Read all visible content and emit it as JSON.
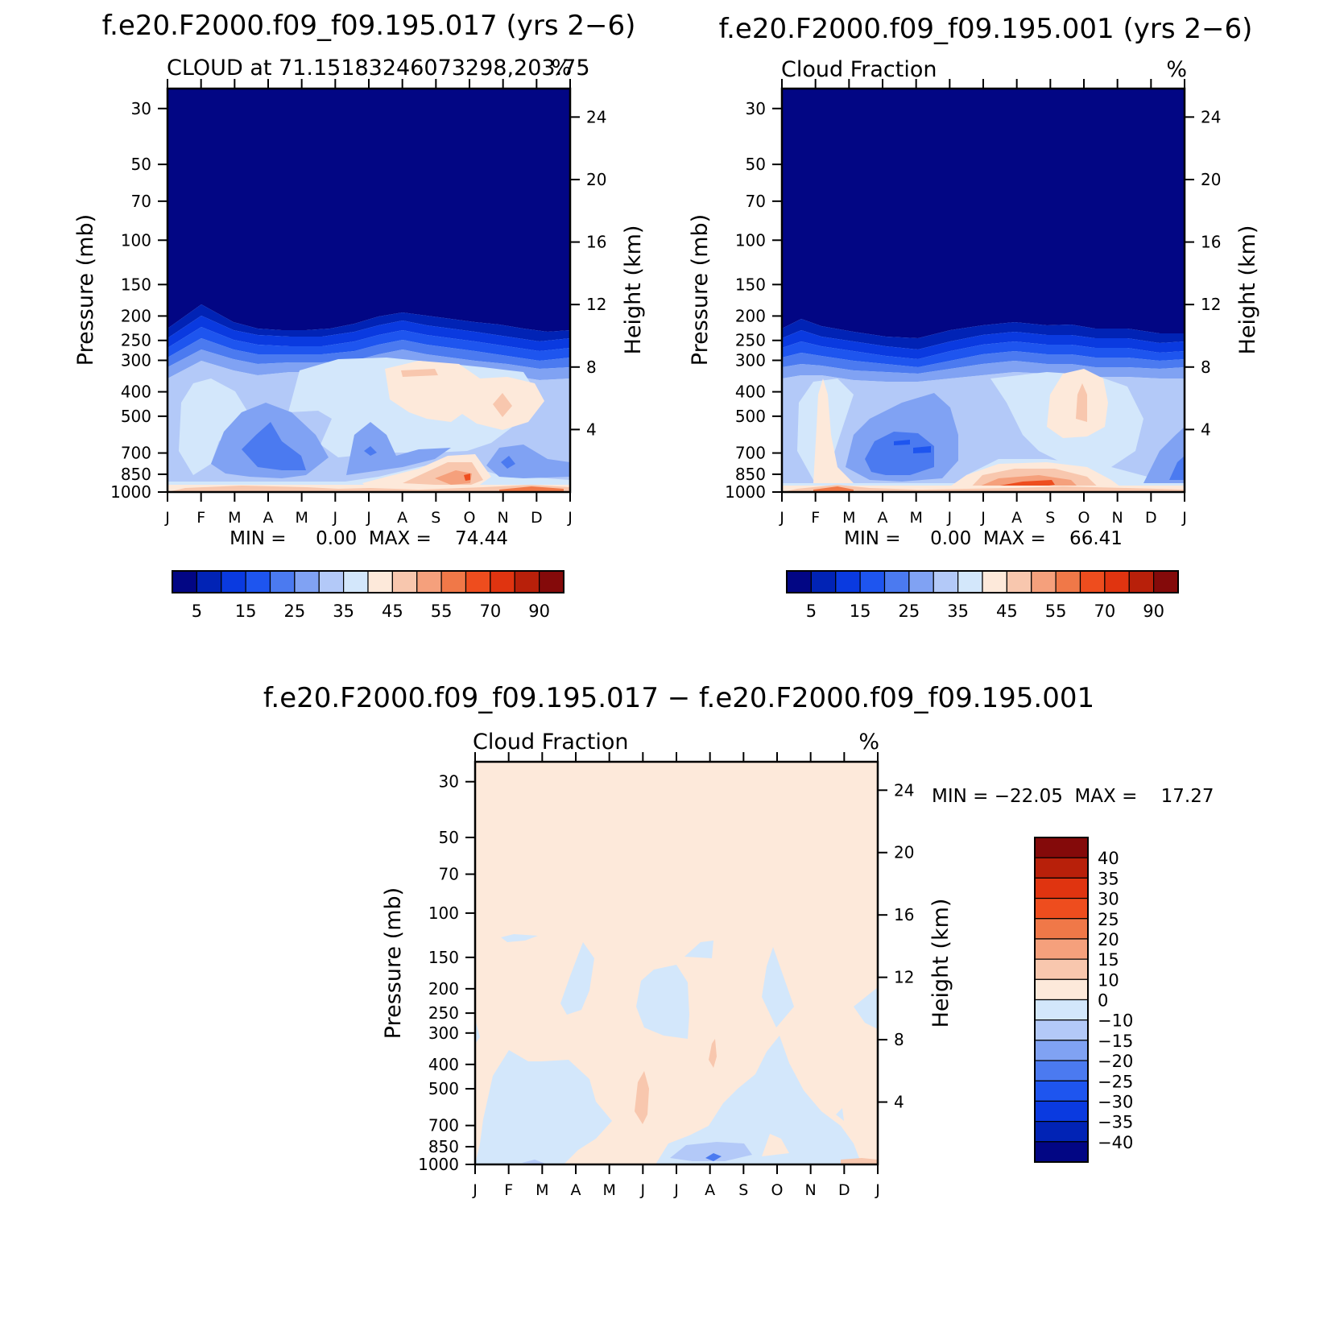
{
  "panels": [
    {
      "title": "f.e20.F2000.f09_f09.195.017 (yrs 2−6)",
      "left_label": "CLOUD at 71.15183246073298,203.75",
      "right_label": "%",
      "minmax": "MIN =     0.00  MAX =    74.44"
    },
    {
      "title": "f.e20.F2000.f09_f09.195.001 (yrs 2−6)",
      "left_label": "Cloud Fraction",
      "right_label": "%",
      "minmax": "MIN =     0.00  MAX =    66.41"
    },
    {
      "title": "f.e20.F2000.f09_f09.195.017 − f.e20.F2000.f09_f09.195.001",
      "left_label": "Cloud Fraction",
      "right_label": "%",
      "minmax": "MIN = −22.05  MAX =    17.27"
    }
  ],
  "axes": {
    "ylabel": "Pressure (mb)",
    "y2label": "Height (km)"
  },
  "colorbars": {
    "abs_labels": [
      "5",
      "15",
      "25",
      "35",
      "45",
      "55",
      "70",
      "90"
    ],
    "diff_labels": [
      "40",
      "35",
      "30",
      "25",
      "20",
      "15",
      "10",
      "0",
      "−10",
      "−15",
      "−20",
      "−25",
      "−30",
      "−35",
      "−40"
    ]
  },
  "chart_data": [
    {
      "type": "heatmap",
      "title": "f.e20.F2000.f09_f09.195.017 (yrs 2−6)",
      "x_ticks": [
        "J",
        "F",
        "M",
        "A",
        "M",
        "J",
        "J",
        "A",
        "S",
        "O",
        "N",
        "D",
        "J"
      ],
      "y_ticks_pressure_mb": [
        30,
        50,
        70,
        100,
        150,
        200,
        250,
        300,
        400,
        500,
        700,
        850,
        1000
      ],
      "y2_ticks_height_km": [
        24,
        20,
        16,
        12,
        8,
        4
      ],
      "ylim_mb": [
        1000,
        25
      ],
      "color_levels": [
        5,
        10,
        15,
        20,
        25,
        30,
        35,
        40,
        45,
        50,
        55,
        60,
        70,
        80,
        90
      ],
      "min": 0.0,
      "max": 74.44
    },
    {
      "type": "heatmap",
      "title": "f.e20.F2000.f09_f09.195.001 (yrs 2−6)",
      "x_ticks": [
        "J",
        "F",
        "M",
        "A",
        "M",
        "J",
        "J",
        "A",
        "S",
        "O",
        "N",
        "D",
        "J"
      ],
      "y_ticks_pressure_mb": [
        30,
        50,
        70,
        100,
        150,
        200,
        250,
        300,
        400,
        500,
        700,
        850,
        1000
      ],
      "y2_ticks_height_km": [
        24,
        20,
        16,
        12,
        8,
        4
      ],
      "ylim_mb": [
        1000,
        25
      ],
      "color_levels": [
        5,
        10,
        15,
        20,
        25,
        30,
        35,
        40,
        45,
        50,
        55,
        60,
        70,
        80,
        90
      ],
      "min": 0.0,
      "max": 66.41
    },
    {
      "type": "heatmap",
      "title": "f.e20.F2000.f09_f09.195.017 − f.e20.F2000.f09_f09.195.001",
      "x_ticks": [
        "J",
        "F",
        "M",
        "A",
        "M",
        "J",
        "J",
        "A",
        "S",
        "O",
        "N",
        "D",
        "J"
      ],
      "y_ticks_pressure_mb": [
        30,
        50,
        70,
        100,
        150,
        200,
        250,
        300,
        400,
        500,
        700,
        850,
        1000
      ],
      "y2_ticks_height_km": [
        24,
        20,
        16,
        12,
        8,
        4
      ],
      "ylim_mb": [
        1000,
        25
      ],
      "color_levels": [
        -40,
        -35,
        -30,
        -25,
        -20,
        -15,
        -10,
        0,
        10,
        15,
        20,
        25,
        30,
        35,
        40
      ],
      "min": -22.05,
      "max": 17.27
    }
  ],
  "colors": {
    "abs_palette": [
      "#020684",
      "#0123b5",
      "#0a3ae0",
      "#1e55ef",
      "#4b7af0",
      "#80a2f3",
      "#b3c9f8",
      "#d3e7fb",
      "#fde9da",
      "#f8c7ae",
      "#f5a07c",
      "#f07848",
      "#ee4d1e",
      "#e03410",
      "#b8200a",
      "#840a0a"
    ],
    "diff_palette": [
      "#020684",
      "#0123b5",
      "#0a3ae0",
      "#1e55ef",
      "#4b7af0",
      "#80a2f3",
      "#b3c9f8",
      "#d3e7fb",
      "#fde9da",
      "#f8c7ae",
      "#f5a07c",
      "#f07848",
      "#ee4d1e",
      "#e03410",
      "#b8200a",
      "#840a0a"
    ]
  }
}
